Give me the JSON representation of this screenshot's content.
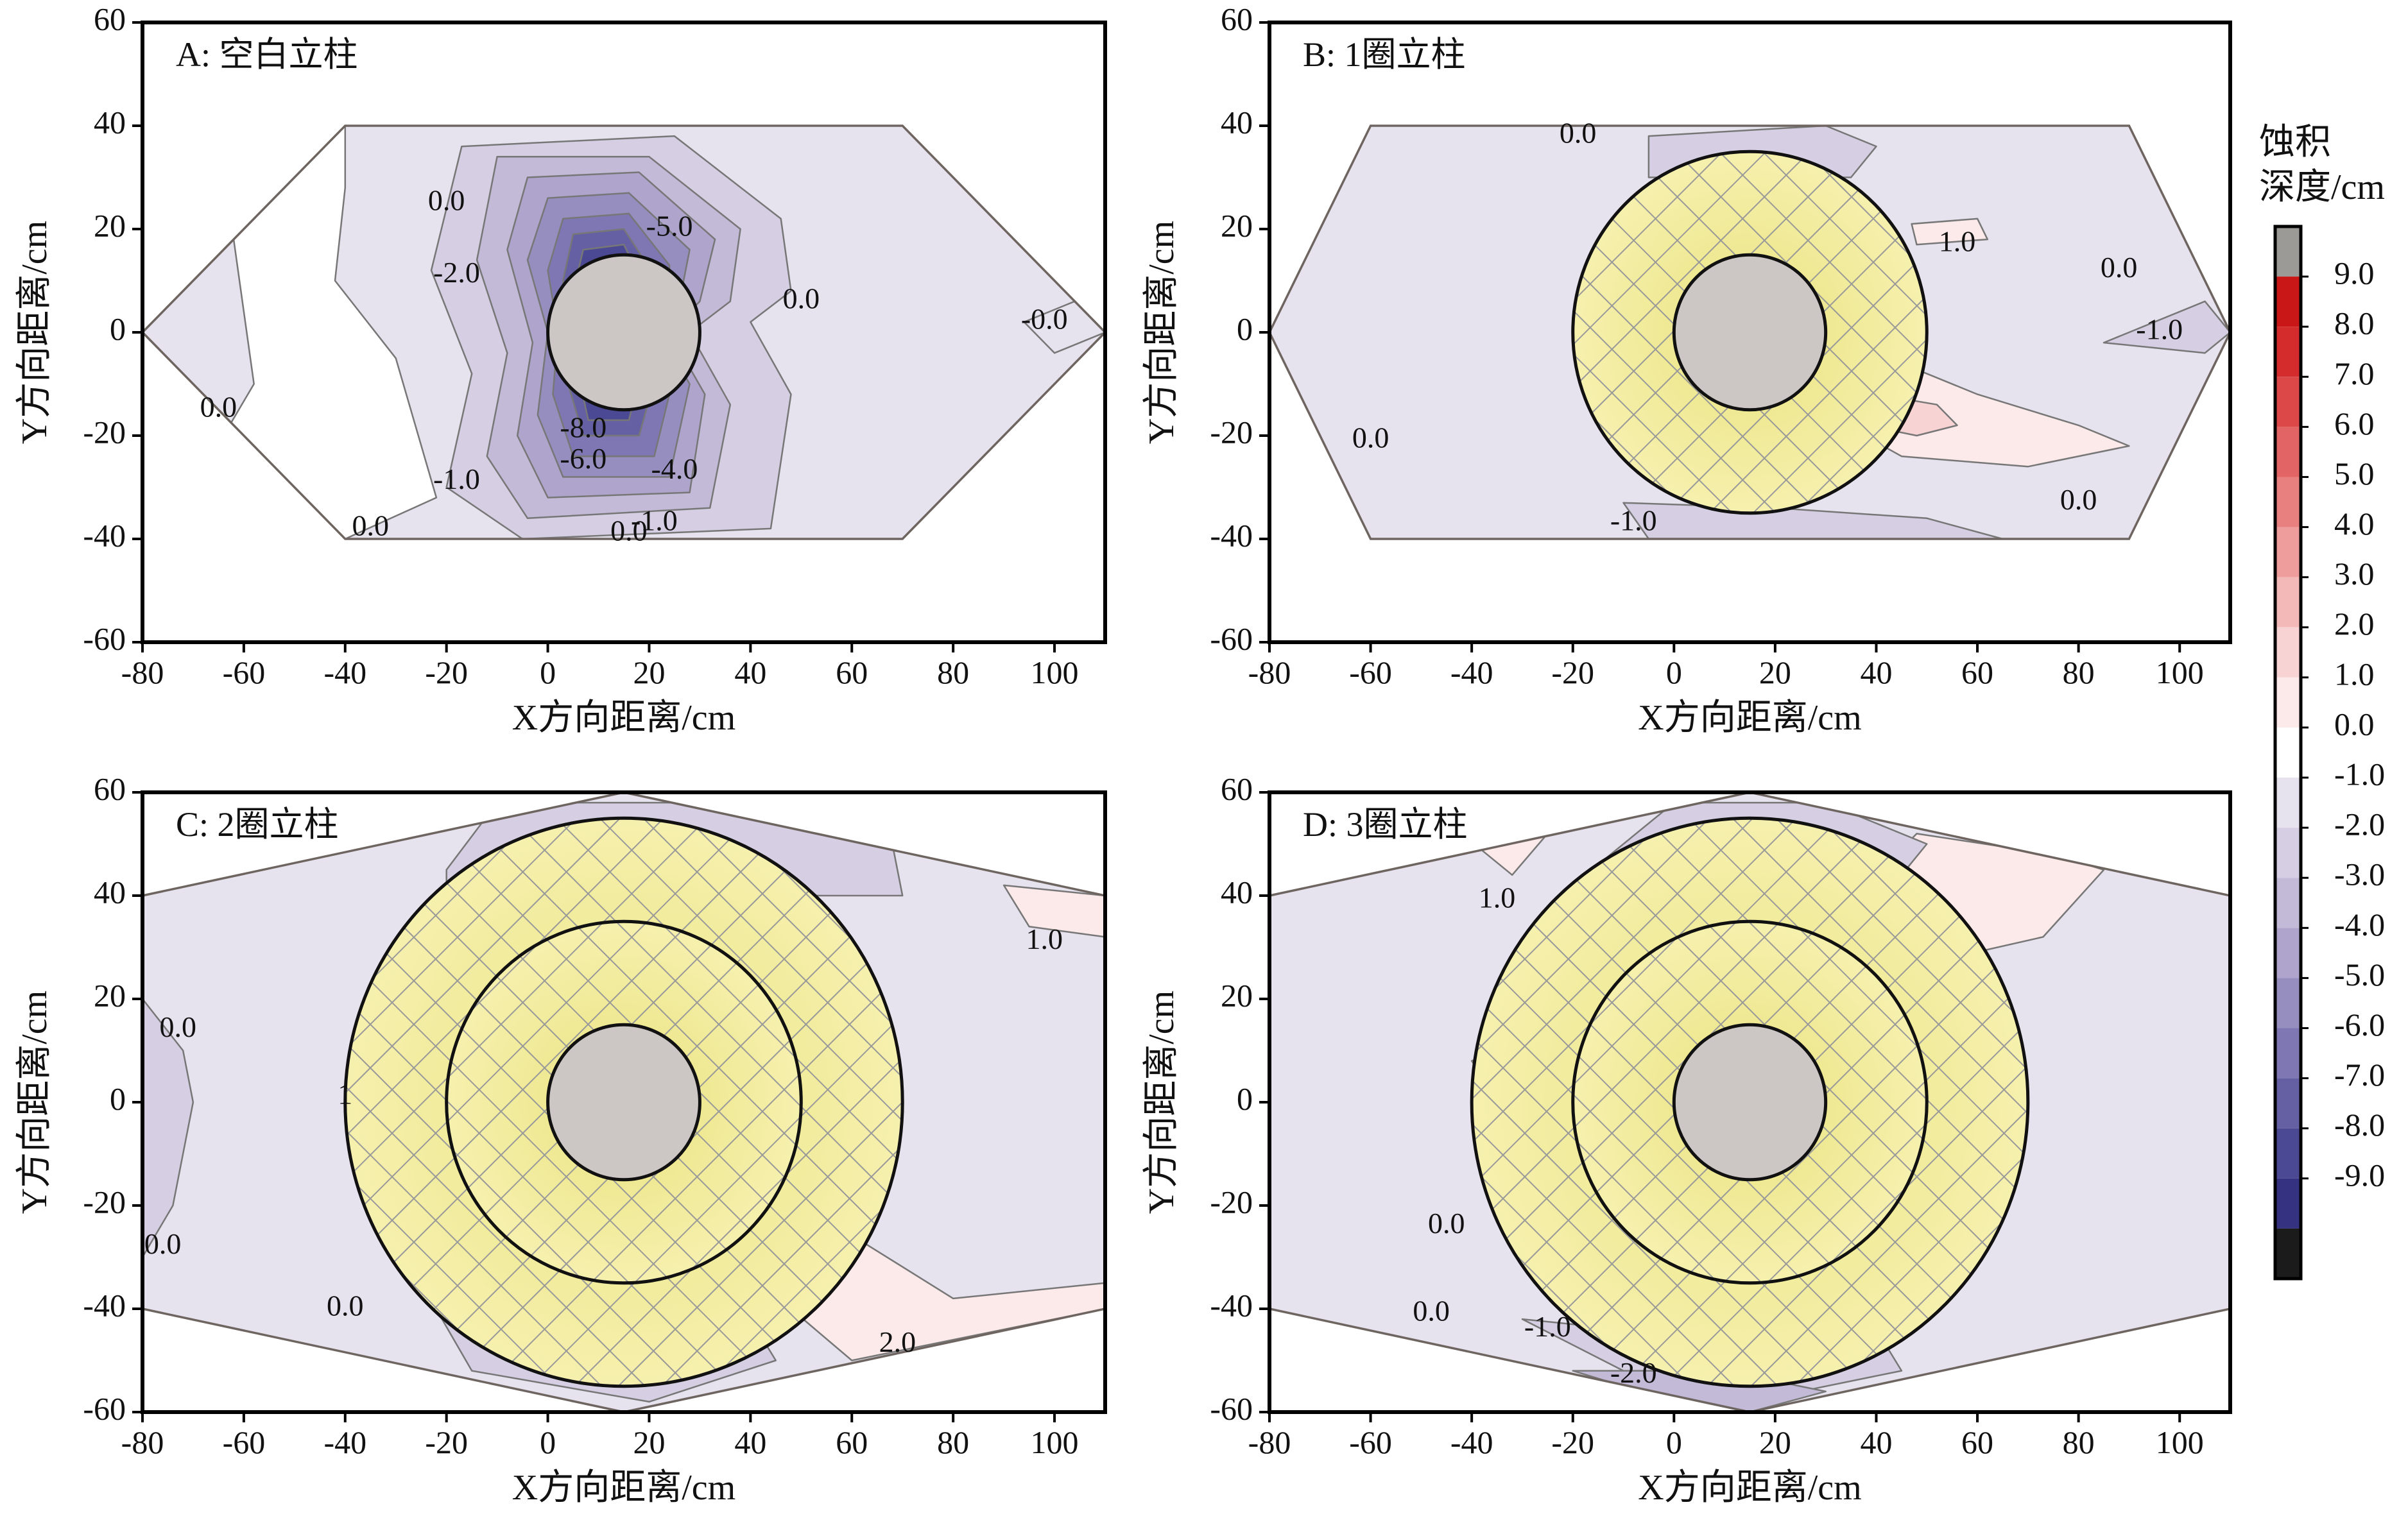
{
  "figure": {
    "colorbar": {
      "title_line1": "蚀积",
      "title_line2": "深度/cm",
      "levels": [
        "9.0",
        "8.0",
        "7.0",
        "6.0",
        "5.0",
        "4.0",
        "3.0",
        "2.0",
        "1.0",
        "0.0",
        "-1.0",
        "-2.0",
        "-3.0",
        "-4.0",
        "-5.0",
        "-6.0",
        "-7.0",
        "-8.0",
        "-9.0"
      ],
      "top_color": "#9c9a96",
      "bottom_color": "#1b1b1b",
      "pos_colors": [
        "#fce9e9",
        "#f8d3d3",
        "#f3b8b8",
        "#ee9c9c",
        "#e88080",
        "#e26464",
        "#dc4848",
        "#d42c2c",
        "#c91616"
      ],
      "neg_colors": [
        "#e6e2ee",
        "#d6cfe3",
        "#c3bad8",
        "#aea4cc",
        "#978ec0",
        "#7e77b3",
        "#6560a4",
        "#4b4894",
        "#343281"
      ]
    }
  },
  "chart_data": [
    {
      "type": "contour",
      "title": "A: 空白立柱",
      "xlabel": "X方向距离/cm",
      "ylabel": "Y方向距离/cm",
      "xlim": [
        -80,
        110
      ],
      "ylim": [
        -60,
        60
      ],
      "xticks": [
        "-80",
        "-60",
        "-40",
        "-20",
        "0",
        "20",
        "40",
        "60",
        "80",
        "100"
      ],
      "yticks": [
        "60",
        "40",
        "20",
        "0",
        "-20",
        "-40",
        "-60"
      ],
      "pillar": {
        "center": [
          15,
          0
        ],
        "radius": 15
      },
      "protection_rings": [],
      "flume_outline": [
        [
          -80,
          0
        ],
        [
          -40,
          40
        ],
        [
          70,
          40
        ],
        [
          110,
          0
        ],
        [
          70,
          -40
        ],
        [
          -40,
          -40
        ]
      ],
      "contour_labels": [
        {
          "text": "0.0",
          "x": -20,
          "y": 25
        },
        {
          "text": "-5.0",
          "x": 24,
          "y": 20
        },
        {
          "text": "-2.0",
          "x": -18,
          "y": 11
        },
        {
          "text": "0.0",
          "x": 50,
          "y": 6
        },
        {
          "text": "-0.0",
          "x": 98,
          "y": 2
        },
        {
          "text": "0.0",
          "x": -65,
          "y": -15
        },
        {
          "text": "-8.0",
          "x": 7,
          "y": -19
        },
        {
          "text": "-6.0",
          "x": 7,
          "y": -25
        },
        {
          "text": "-4.0",
          "x": 25,
          "y": -27
        },
        {
          "text": "-1.0",
          "x": -18,
          "y": -29
        },
        {
          "text": "0.0",
          "x": -35,
          "y": -38
        },
        {
          "text": "0.0",
          "x": 16,
          "y": -39
        },
        {
          "text": "-1.0",
          "x": 21,
          "y": -37
        }
      ]
    },
    {
      "type": "contour",
      "title": "B: 1圈立柱",
      "xlabel": "X方向距离/cm",
      "ylabel": "Y方向距离/cm",
      "xlim": [
        -80,
        110
      ],
      "ylim": [
        -60,
        60
      ],
      "xticks": [
        "-80",
        "-60",
        "-40",
        "-20",
        "0",
        "20",
        "40",
        "60",
        "80",
        "100"
      ],
      "yticks": [
        "60",
        "40",
        "20",
        "0",
        "-20",
        "-40",
        "-60"
      ],
      "pillar": {
        "center": [
          15,
          0
        ],
        "radius": 15
      },
      "protection_rings": [
        {
          "radius": 35
        }
      ],
      "flume_outline": [
        [
          -80,
          0
        ],
        [
          -60,
          40
        ],
        [
          90,
          40
        ],
        [
          110,
          0
        ],
        [
          90,
          -40
        ],
        [
          -60,
          -40
        ]
      ],
      "contour_labels": [
        {
          "text": "0.0",
          "x": -19,
          "y": 38
        },
        {
          "text": "1.0",
          "x": 56,
          "y": 17
        },
        {
          "text": "0.0",
          "x": 88,
          "y": 12
        },
        {
          "text": "-1.0",
          "x": 96,
          "y": 0
        },
        {
          "text": "0.0",
          "x": -60,
          "y": -21
        },
        {
          "text": "0.0",
          "x": 80,
          "y": -33
        },
        {
          "text": "-1.0",
          "x": -8,
          "y": -37
        }
      ]
    },
    {
      "type": "contour",
      "title": "C: 2圈立柱",
      "xlabel": "X方向距离/cm",
      "ylabel": "Y方向距离/cm",
      "xlim": [
        -80,
        110
      ],
      "ylim": [
        -60,
        60
      ],
      "xticks": [
        "-80",
        "-60",
        "-40",
        "-20",
        "0",
        "20",
        "40",
        "60",
        "80",
        "100"
      ],
      "yticks": [
        "60",
        "40",
        "20",
        "0",
        "-20",
        "-40",
        "-60"
      ],
      "pillar": {
        "center": [
          15,
          0
        ],
        "radius": 15
      },
      "protection_rings": [
        {
          "radius": 35
        },
        {
          "radius": 55
        }
      ],
      "flume_outline": [
        [
          -80,
          40
        ],
        [
          15,
          60
        ],
        [
          110,
          40
        ],
        [
          110,
          -40
        ],
        [
          15,
          -60
        ],
        [
          -80,
          -40
        ]
      ],
      "contour_labels": [
        {
          "text": "0.0",
          "x": -73,
          "y": 14
        },
        {
          "text": "1.0",
          "x": 98,
          "y": 31
        },
        {
          "text": "0.0",
          "x": -76,
          "y": -28
        },
        {
          "text": "0.0",
          "x": -40,
          "y": -40
        },
        {
          "text": "2.0",
          "x": 69,
          "y": -47
        },
        {
          "text": "1",
          "x": -40,
          "y": 1
        }
      ]
    },
    {
      "type": "contour",
      "title": "D: 3圈立柱",
      "xlabel": "X方向距离/cm",
      "ylabel": "Y方向距离/cm",
      "xlim": [
        -80,
        110
      ],
      "ylim": [
        -60,
        60
      ],
      "xticks": [
        "-80",
        "-60",
        "-40",
        "-20",
        "0",
        "20",
        "40",
        "60",
        "80",
        "100"
      ],
      "yticks": [
        "60",
        "40",
        "20",
        "0",
        "-20",
        "-40",
        "-60"
      ],
      "pillar": {
        "center": [
          15,
          0
        ],
        "radius": 15
      },
      "protection_rings": [
        {
          "radius": 35
        },
        {
          "radius": 55
        }
      ],
      "flume_outline": [
        [
          -80,
          40
        ],
        [
          15,
          60
        ],
        [
          110,
          40
        ],
        [
          110,
          -40
        ],
        [
          15,
          -60
        ],
        [
          -80,
          -40
        ]
      ],
      "contour_labels": [
        {
          "text": "1.0",
          "x": -35,
          "y": 39
        },
        {
          "text": "0.0",
          "x": -45,
          "y": -24
        },
        {
          "text": "0.0",
          "x": -48,
          "y": -41
        },
        {
          "text": "-1.0",
          "x": -25,
          "y": -44
        },
        {
          "text": "-2.0",
          "x": -8,
          "y": -53
        }
      ]
    }
  ]
}
